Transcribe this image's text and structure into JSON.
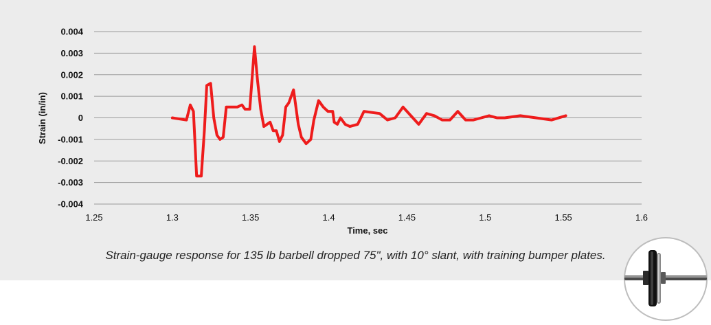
{
  "caption": "Strain-gauge response for 135 lb barbell dropped 75\", with 10° slant, with training bumper plates.",
  "badge_icon": "barbell-plate-icon",
  "colors": {
    "line": "#ee1c1c",
    "panel": "#ececec",
    "grid": "#9a9a9a"
  },
  "chart_data": {
    "type": "line",
    "title": "",
    "xlabel": "Time, sec",
    "ylabel": "Strain (in/in)",
    "xlim": [
      1.25,
      1.6
    ],
    "ylim": [
      -0.004,
      0.004
    ],
    "x_ticks": [
      "1.25",
      "1.3",
      "1.35",
      "1.4",
      "1.45",
      "1.5",
      "1.55",
      "1.6"
    ],
    "x_tick_values": [
      1.25,
      1.3,
      1.35,
      1.4,
      1.45,
      1.5,
      1.55,
      1.6
    ],
    "y_ticks": [
      "0.004",
      "0.003",
      "0.002",
      "0.001",
      "0",
      "-0.001",
      "-0.002",
      "-0.003",
      "-0.004"
    ],
    "y_tick_values": [
      0.004,
      0.003,
      0.002,
      0.001,
      0,
      -0.001,
      -0.002,
      -0.003,
      -0.004
    ],
    "grid": "horizontal",
    "series": [
      {
        "name": "",
        "x": [
          1.3,
          1.309,
          1.3115,
          1.3135,
          1.3155,
          1.3185,
          1.3205,
          1.322,
          1.3245,
          1.3265,
          1.3285,
          1.3305,
          1.3325,
          1.3345,
          1.3375,
          1.3415,
          1.3445,
          1.3465,
          1.3495,
          1.3525,
          1.3545,
          1.3565,
          1.3585,
          1.3625,
          1.3645,
          1.3665,
          1.3685,
          1.3705,
          1.3725,
          1.3745,
          1.3775,
          1.3805,
          1.3825,
          1.3855,
          1.3885,
          1.3905,
          1.3935,
          1.3965,
          1.3995,
          1.4025,
          1.4035,
          1.4055,
          1.4075,
          1.4105,
          1.4135,
          1.4185,
          1.4225,
          1.4325,
          1.4375,
          1.4425,
          1.4475,
          1.4525,
          1.4575,
          1.4625,
          1.4675,
          1.4725,
          1.4775,
          1.4825,
          1.4875,
          1.4925,
          1.4975,
          1.5025,
          1.5075,
          1.5125,
          1.5225,
          1.5325,
          1.5425,
          1.5515
        ],
        "y": [
          0.0,
          -0.0001,
          0.0006,
          0.0003,
          -0.0027,
          -0.0027,
          -0.0006,
          0.0015,
          0.0016,
          0.0,
          -0.0008,
          -0.001,
          -0.0009,
          0.0005,
          0.0005,
          0.0005,
          0.0006,
          0.0004,
          0.0004,
          0.0033,
          0.0017,
          0.0004,
          -0.0004,
          -0.0002,
          -0.0006,
          -0.0006,
          -0.0011,
          -0.0008,
          0.0005,
          0.0007,
          0.0013,
          -0.0003,
          -0.0009,
          -0.0012,
          -0.001,
          -0.0001,
          0.0008,
          0.0005,
          0.0003,
          0.0003,
          -0.0002,
          -0.0003,
          0.0,
          -0.0003,
          -0.0004,
          -0.0003,
          0.0003,
          0.0002,
          -0.0001,
          0.0,
          0.0005,
          0.0001,
          -0.0003,
          0.0002,
          0.0001,
          -0.0001,
          -0.0001,
          0.0003,
          -0.0001,
          -0.0001,
          0.0,
          0.0001,
          0.0,
          0.0,
          0.0001,
          0.0,
          -0.0001,
          0.0001
        ]
      }
    ]
  }
}
